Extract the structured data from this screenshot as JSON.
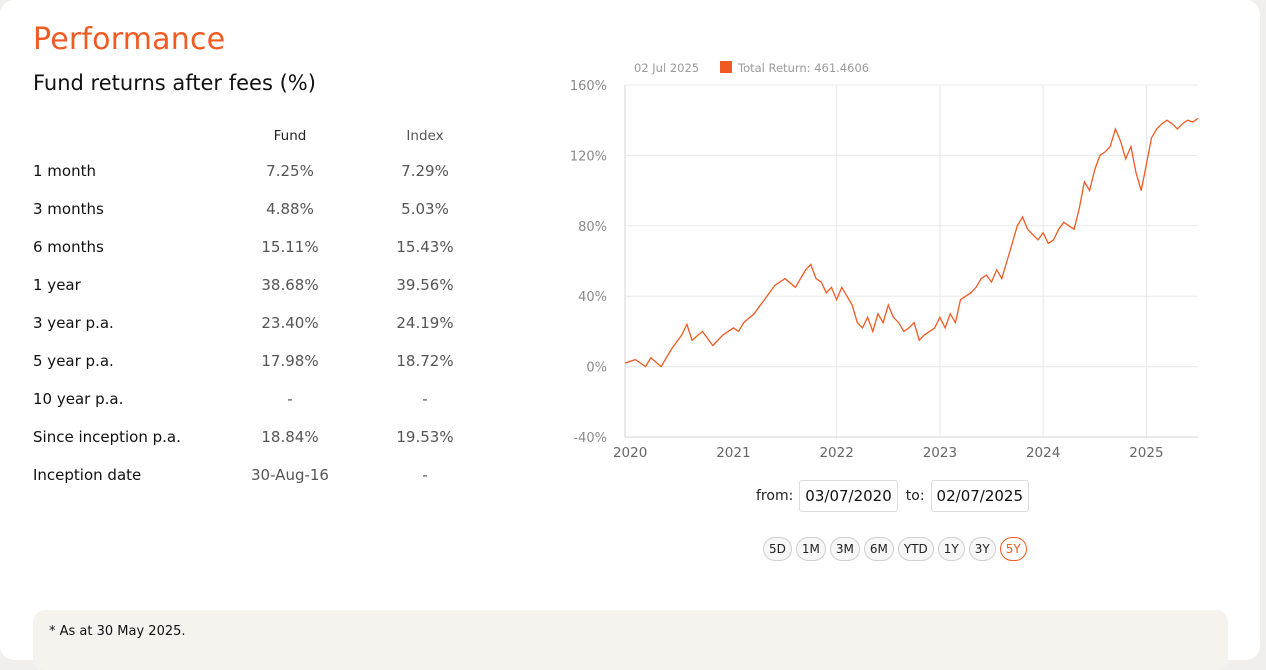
{
  "page": {
    "title": "Performance",
    "subtitle": "Fund returns after fees (%)"
  },
  "returns_table": {
    "headers": [
      "",
      "Fund",
      "Index"
    ],
    "rows": [
      {
        "label": "1 month",
        "fund": "7.25%",
        "index": "7.29%"
      },
      {
        "label": "3 months",
        "fund": "4.88%",
        "index": "5.03%"
      },
      {
        "label": "6 months",
        "fund": "15.11%",
        "index": "15.43%"
      },
      {
        "label": "1 year",
        "fund": "38.68%",
        "index": "39.56%"
      },
      {
        "label": "3 year p.a.",
        "fund": "23.40%",
        "index": "24.19%"
      },
      {
        "label": "5 year p.a.",
        "fund": "17.98%",
        "index": "18.72%"
      },
      {
        "label": "10 year p.a.",
        "fund": "-",
        "index": "-"
      },
      {
        "label": "Since inception p.a.",
        "fund": "18.84%",
        "index": "19.53%"
      },
      {
        "label": "Inception date",
        "fund": "30-Aug-16",
        "index": "-"
      }
    ]
  },
  "chart_data": {
    "type": "line",
    "tooltip_date": "02 Jul 2025",
    "legend_label": "Total Return: 461.4606",
    "series_color": "#f05a23",
    "ylim": [
      -40,
      160
    ],
    "y_ticks": [
      "160%",
      "120%",
      "80%",
      "40%",
      "0%",
      "-40%"
    ],
    "y_tick_values": [
      160,
      120,
      80,
      40,
      0,
      -40
    ],
    "x_ticks": [
      "2020",
      "2021",
      "2022",
      "2023",
      "2024",
      "2025"
    ],
    "x_tick_values": [
      2020.0,
      2021.0,
      2022.0,
      2023.0,
      2024.0,
      2025.0
    ],
    "xlim": [
      2019.95,
      2025.5
    ],
    "grid": true,
    "series": [
      {
        "x": [
          2019.95,
          2020.05,
          2020.15,
          2020.2,
          2020.3,
          2020.4,
          2020.5,
          2020.55,
          2020.6,
          2020.7,
          2020.8,
          2020.9,
          2021.0,
          2021.05,
          2021.1,
          2021.2,
          2021.3,
          2021.4,
          2021.5,
          2021.6,
          2021.7,
          2021.75,
          2021.8,
          2021.85,
          2021.9,
          2021.95,
          2022.0,
          2022.05,
          2022.1,
          2022.15,
          2022.2,
          2022.25,
          2022.3,
          2022.35,
          2022.4,
          2022.45,
          2022.5,
          2022.55,
          2022.6,
          2022.65,
          2022.7,
          2022.75,
          2022.8,
          2022.85,
          2022.9,
          2022.95,
          2023.0,
          2023.05,
          2023.1,
          2023.15,
          2023.2,
          2023.25,
          2023.3,
          2023.35,
          2023.4,
          2023.45,
          2023.5,
          2023.55,
          2023.6,
          2023.65,
          2023.7,
          2023.75,
          2023.8,
          2023.85,
          2023.9,
          2023.95,
          2024.0,
          2024.05,
          2024.1,
          2024.15,
          2024.2,
          2024.25,
          2024.3,
          2024.35,
          2024.4,
          2024.45,
          2024.5,
          2024.55,
          2024.6,
          2024.65,
          2024.7,
          2024.75,
          2024.8,
          2024.85,
          2024.9,
          2024.95,
          2025.0,
          2025.05,
          2025.1,
          2025.15,
          2025.2,
          2025.25,
          2025.3,
          2025.35,
          2025.4,
          2025.45,
          2025.5
        ],
        "values": [
          2,
          4,
          0,
          5,
          0,
          10,
          18,
          24,
          15,
          20,
          12,
          18,
          22,
          20,
          25,
          30,
          38,
          46,
          50,
          45,
          55,
          58,
          50,
          48,
          42,
          45,
          38,
          45,
          40,
          35,
          25,
          22,
          28,
          20,
          30,
          25,
          35,
          28,
          25,
          20,
          22,
          25,
          15,
          18,
          20,
          22,
          28,
          22,
          30,
          25,
          38,
          40,
          42,
          45,
          50,
          52,
          48,
          55,
          50,
          60,
          70,
          80,
          85,
          78,
          75,
          72,
          76,
          70,
          72,
          78,
          82,
          80,
          78,
          90,
          105,
          100,
          112,
          120,
          122,
          125,
          135,
          128,
          118,
          125,
          110,
          100,
          115,
          130,
          135,
          138,
          140,
          138,
          135,
          138,
          140,
          139,
          141
        ]
      }
    ]
  }
}
